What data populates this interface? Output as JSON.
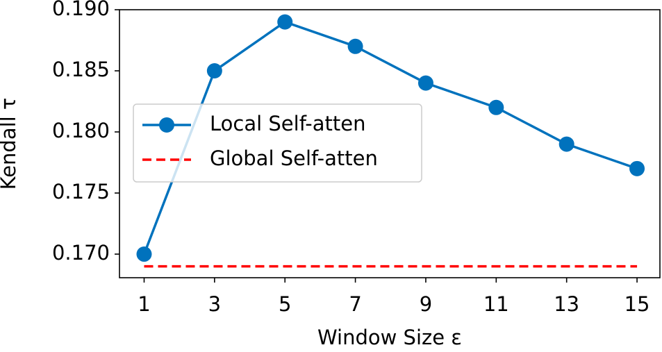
{
  "chart_data": {
    "type": "line",
    "x_label": "Window Size ε",
    "y_label": "Kendall τ",
    "x": [
      1,
      3,
      5,
      7,
      9,
      11,
      13,
      15
    ],
    "series": [
      {
        "name": "Local Self-atten",
        "color": "#0072bd",
        "linestyle": "solid",
        "marker": "circle",
        "values": [
          0.17,
          0.185,
          0.189,
          0.187,
          0.184,
          0.182,
          0.179,
          0.177
        ]
      },
      {
        "name": "Global Self-atten",
        "color": "#ff0000",
        "linestyle": "dashed",
        "marker": "none",
        "values": [
          0.169,
          0.169,
          0.169,
          0.169,
          0.169,
          0.169,
          0.169,
          0.169
        ]
      }
    ],
    "xlim": [
      0.3,
      15.65
    ],
    "ylim": [
      0.16807,
      0.19
    ],
    "xticks": [
      1,
      3,
      5,
      7,
      9,
      11,
      13,
      15
    ],
    "yticks": [
      {
        "value": 0.17,
        "label": "0.170"
      },
      0.175,
      {
        "value": 0.18,
        "label": "0.180"
      },
      0.185,
      {
        "value": 0.19,
        "label": "0.190"
      }
    ],
    "legend": "center left",
    "grid": false
  }
}
